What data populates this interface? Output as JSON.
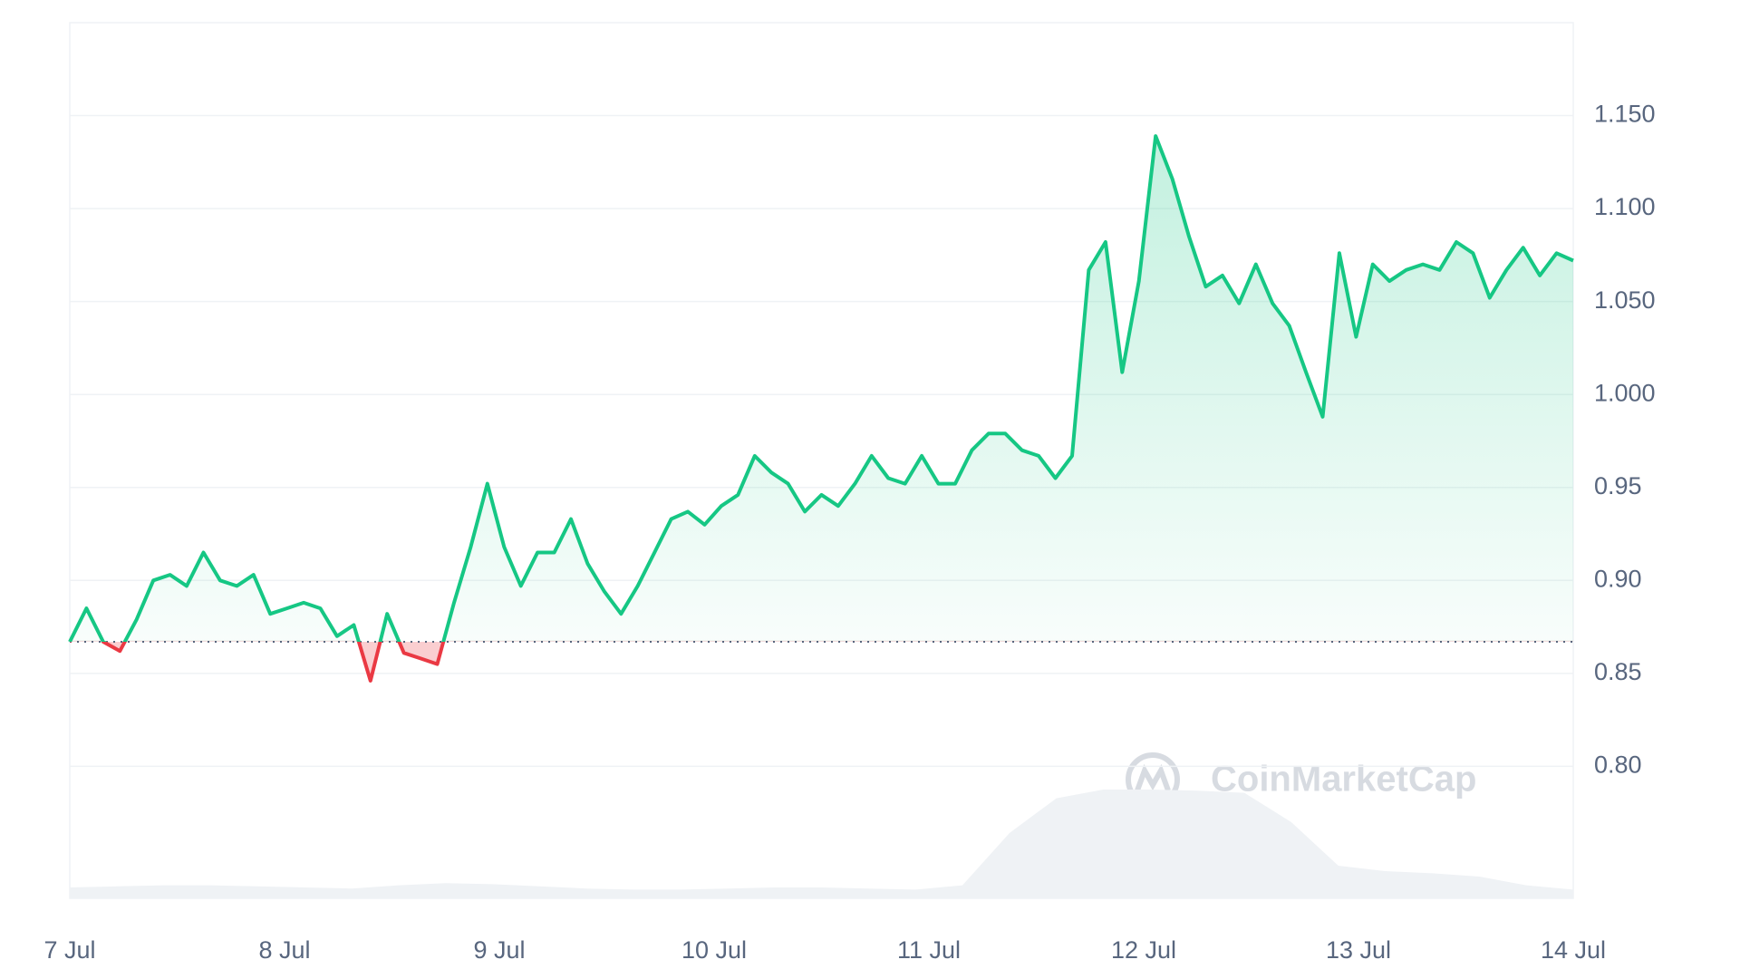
{
  "chart_data": {
    "type": "line",
    "x_labels": [
      "7 Jul",
      "8 Jul",
      "9 Jul",
      "10 Jul",
      "11 Jul",
      "12 Jul",
      "13 Jul",
      "14 Jul"
    ],
    "series": [
      {
        "color": "#16c784",
        "below_color": "#ea3943",
        "values": [
          0.867,
          0.885,
          0.867,
          0.862,
          0.879,
          0.9,
          0.903,
          0.897,
          0.915,
          0.9,
          0.897,
          0.903,
          0.882,
          0.885,
          0.888,
          0.885,
          0.87,
          0.876,
          0.846,
          0.882,
          0.861,
          0.858,
          0.855,
          0.888,
          0.918,
          0.952,
          0.918,
          0.897,
          0.915,
          0.915,
          0.933,
          0.909,
          0.894,
          0.882,
          0.897,
          0.915,
          0.933,
          0.937,
          0.93,
          0.94,
          0.946,
          0.967,
          0.958,
          0.952,
          0.937,
          0.946,
          0.94,
          0.952,
          0.967,
          0.955,
          0.952,
          0.967,
          0.952,
          0.952,
          0.97,
          0.979,
          0.979,
          0.97,
          0.967,
          0.955,
          0.967,
          1.067,
          1.082,
          1.012,
          1.061,
          1.139,
          1.116,
          1.085,
          1.058,
          1.064,
          1.049,
          1.07,
          1.049,
          1.037,
          1.012,
          0.988,
          1.076,
          1.031,
          1.07,
          1.061,
          1.067,
          1.07,
          1.067,
          1.082,
          1.076,
          1.052,
          1.067,
          1.079,
          1.064,
          1.076,
          1.072
        ]
      }
    ],
    "baseline": 0.867,
    "ylim": [
      0.729,
      1.2
    ],
    "yticks": [
      {
        "value": 0.8,
        "label": "0.80"
      },
      0.85,
      {
        "value": 0.9,
        "label": "0.90"
      },
      0.95,
      {
        "value": 1.0,
        "label": "1.000"
      },
      {
        "value": 1.05,
        "label": "1.050"
      },
      {
        "value": 1.1,
        "label": "1.100"
      },
      {
        "value": 1.15,
        "label": "1.150"
      }
    ],
    "grid": true,
    "volume": {
      "color": "#eff2f5",
      "ylim": [
        0,
        100
      ],
      "values": [
        10,
        11,
        12,
        12,
        11,
        10,
        9,
        12,
        14,
        13,
        11,
        9,
        8,
        8,
        9,
        10,
        10,
        9,
        8,
        12,
        60,
        92,
        100,
        100,
        99,
        97,
        70,
        30,
        25,
        23,
        20,
        12,
        8
      ]
    },
    "watermark": "CoinMarketCap"
  }
}
